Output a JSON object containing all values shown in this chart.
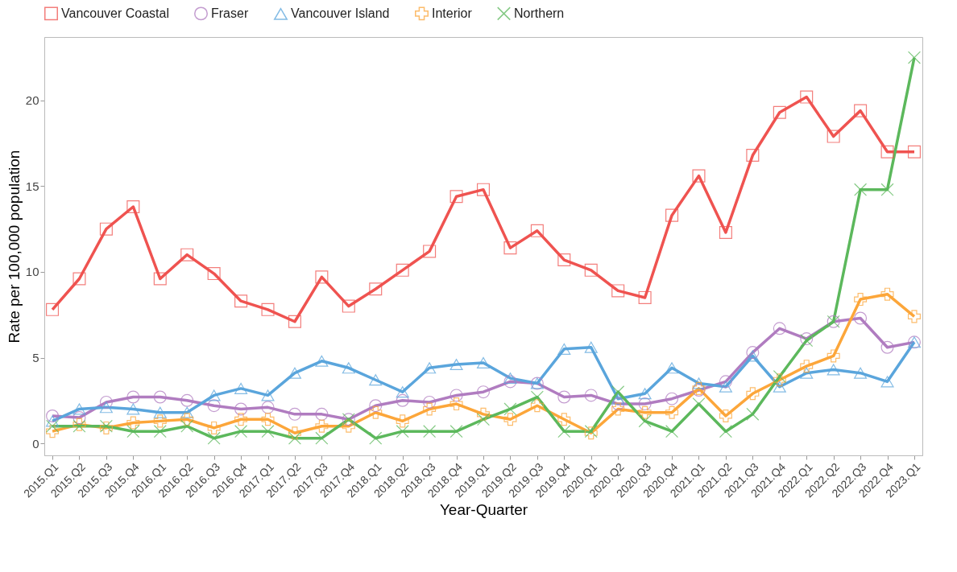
{
  "chart_data": {
    "type": "line",
    "xlabel": "Year-Quarter",
    "ylabel": "Rate per 100,000 population",
    "categories": [
      "2015.Q1",
      "2015.Q2",
      "2015.Q3",
      "2015.Q4",
      "2016.Q1",
      "2016.Q2",
      "2016.Q3",
      "2016.Q4",
      "2017.Q1",
      "2017.Q2",
      "2017.Q3",
      "2017.Q4",
      "2018.Q1",
      "2018.Q2",
      "2018.Q3",
      "2018.Q4",
      "2019.Q1",
      "2019.Q2",
      "2019.Q3",
      "2019.Q4",
      "2020.Q1",
      "2020.Q2",
      "2020.Q3",
      "2020.Q4",
      "2021.Q1",
      "2021.Q2",
      "2021.Q3",
      "2021.Q4",
      "2022.Q1",
      "2022.Q2",
      "2022.Q3",
      "2022.Q4",
      "2023.Q1"
    ],
    "series": [
      {
        "name": "Vancouver Coastal",
        "color": "#ef5350",
        "marker": "square",
        "values": [
          7.8,
          9.6,
          12.5,
          13.8,
          9.6,
          11.0,
          9.9,
          8.3,
          7.8,
          7.1,
          9.7,
          8.0,
          9.0,
          10.1,
          11.2,
          14.4,
          14.8,
          11.4,
          12.4,
          10.7,
          10.1,
          8.9,
          8.5,
          13.3,
          15.6,
          12.3,
          16.8,
          19.3,
          20.2,
          17.9,
          19.4,
          17.0,
          17.0
        ]
      },
      {
        "name": "Fraser",
        "color": "#b07cc0",
        "marker": "circle",
        "values": [
          1.6,
          1.5,
          2.4,
          2.7,
          2.7,
          2.5,
          2.2,
          2.0,
          2.1,
          1.7,
          1.7,
          1.4,
          2.2,
          2.5,
          2.4,
          2.8,
          3.0,
          3.6,
          3.5,
          2.7,
          2.8,
          2.3,
          2.3,
          2.6,
          3.1,
          3.6,
          5.3,
          6.7,
          6.1,
          7.1,
          7.3,
          5.6,
          5.9
        ]
      },
      {
        "name": "Vancouver Island",
        "color": "#5aa5dc",
        "marker": "triangle",
        "values": [
          1.3,
          2.0,
          2.1,
          2.0,
          1.8,
          1.8,
          2.8,
          3.2,
          2.8,
          4.1,
          4.8,
          4.4,
          3.7,
          3.0,
          4.4,
          4.6,
          4.7,
          3.8,
          3.5,
          5.5,
          5.6,
          2.6,
          2.9,
          4.4,
          3.5,
          3.3,
          5.1,
          3.3,
          4.1,
          4.3,
          4.1,
          3.6,
          5.9
        ]
      },
      {
        "name": "Interior",
        "color": "#fca63a",
        "marker": "plus",
        "values": [
          0.7,
          1.1,
          0.9,
          1.2,
          1.3,
          1.4,
          0.9,
          1.4,
          1.4,
          0.6,
          1.0,
          1.0,
          1.8,
          1.3,
          2.0,
          2.3,
          1.7,
          1.4,
          2.2,
          1.4,
          0.6,
          2.0,
          1.8,
          1.8,
          3.2,
          1.6,
          2.9,
          3.7,
          4.5,
          5.1,
          8.4,
          8.7,
          7.4
        ]
      },
      {
        "name": "Northern",
        "color": "#5cb85c",
        "marker": "cross",
        "values": [
          1.0,
          1.0,
          1.0,
          0.7,
          0.7,
          1.0,
          0.3,
          0.7,
          0.7,
          0.3,
          0.3,
          1.4,
          0.3,
          0.7,
          0.7,
          0.7,
          1.4,
          2.0,
          2.7,
          0.7,
          0.7,
          3.0,
          1.3,
          0.7,
          2.3,
          0.7,
          1.7,
          3.9,
          6.0,
          7.1,
          14.8,
          14.8,
          22.5
        ]
      }
    ],
    "ylim": [
      -0.7,
      23.7
    ],
    "yticks": [
      0,
      5,
      10,
      15,
      20
    ],
    "legend": "top",
    "grid": false
  }
}
